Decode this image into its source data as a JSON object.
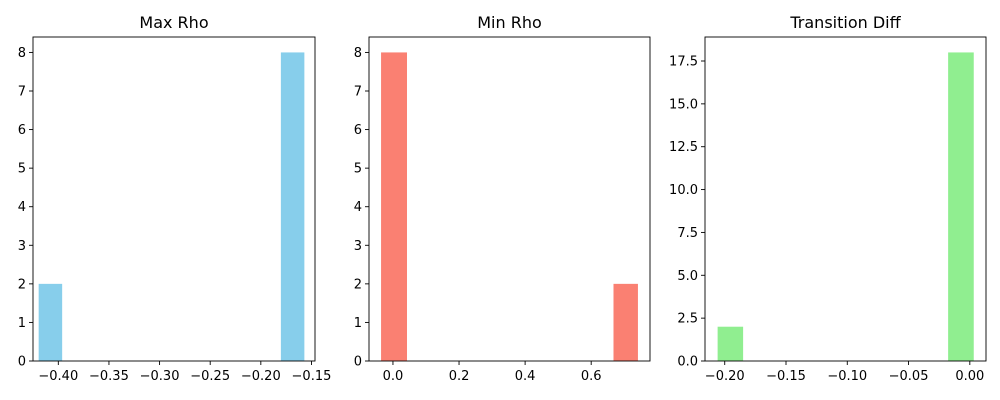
{
  "chart_data": [
    {
      "type": "bar",
      "title": "Max Rho",
      "xlabel": "",
      "ylabel": "",
      "color": "#87ceeb",
      "xlim": [
        -0.425,
        -0.1465
      ],
      "ylim": [
        0,
        8.4
      ],
      "bars": [
        {
          "x0": -0.4194,
          "x1": -0.3962,
          "value": 2
        },
        {
          "x0": -0.1802,
          "x1": -0.157,
          "value": 8
        }
      ],
      "xticks": [
        -0.4,
        -0.35,
        -0.3,
        -0.25,
        -0.2,
        -0.15
      ],
      "xtick_labels": [
        "−0.40",
        "−0.35",
        "−0.30",
        "−0.25",
        "−0.20",
        "−0.15"
      ],
      "yticks": [
        0,
        1,
        2,
        3,
        4,
        5,
        6,
        7,
        8
      ],
      "ytick_labels": [
        "0",
        "1",
        "2",
        "3",
        "4",
        "5",
        "6",
        "7",
        "8"
      ]
    },
    {
      "type": "bar",
      "title": "Min Rho",
      "xlabel": "",
      "ylabel": "",
      "color": "#fa8072",
      "xlim": [
        -0.0725,
        0.778
      ],
      "ylim": [
        0,
        8.4
      ],
      "bars": [
        {
          "x0": -0.036,
          "x1": 0.0425,
          "value": 8
        },
        {
          "x0": 0.6675,
          "x1": 0.7415,
          "value": 2
        }
      ],
      "xticks": [
        0.0,
        0.2,
        0.4,
        0.6
      ],
      "xtick_labels": [
        "0.0",
        "0.2",
        "0.4",
        "0.6"
      ],
      "yticks": [
        0,
        1,
        2,
        3,
        4,
        5,
        6,
        7,
        8
      ],
      "ytick_labels": [
        "0",
        "1",
        "2",
        "3",
        "4",
        "5",
        "6",
        "7",
        "8"
      ]
    },
    {
      "type": "bar",
      "title": "Transition Diff",
      "xlabel": "",
      "ylabel": "",
      "color": "#90ee90",
      "xlim": [
        -0.2161,
        0.0132
      ],
      "ylim": [
        0,
        18.9
      ],
      "bars": [
        {
          "x0": -0.2058,
          "x1": -0.185,
          "value": 2
        },
        {
          "x0": -0.0177,
          "x1": 0.0032,
          "value": 18
        }
      ],
      "xticks": [
        -0.2,
        -0.15,
        -0.1,
        -0.05,
        0.0
      ],
      "xtick_labels": [
        "−0.20",
        "−0.15",
        "−0.10",
        "−0.05",
        "0.00"
      ],
      "yticks": [
        0,
        2.5,
        5,
        7.5,
        10,
        12.5,
        15,
        17.5
      ],
      "ytick_labels": [
        "0.0",
        "2.5",
        "5.0",
        "7.5",
        "10.0",
        "12.5",
        "15.0",
        "17.5"
      ]
    }
  ]
}
